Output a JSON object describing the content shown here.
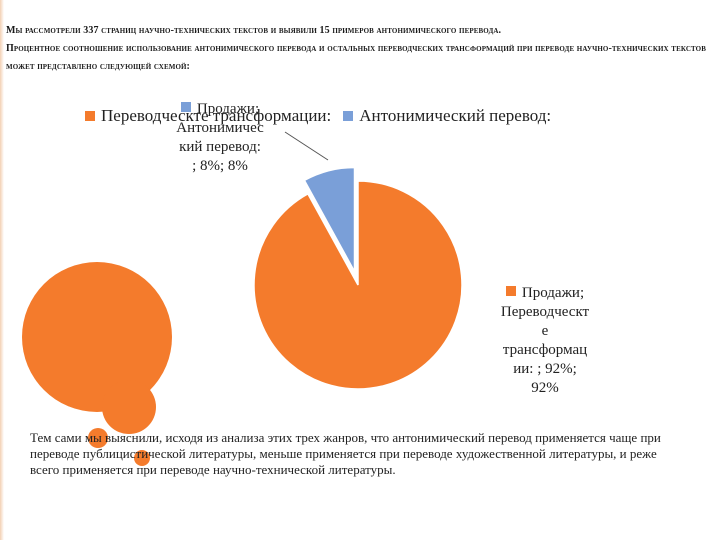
{
  "heading": {
    "line1": "Мы рассмотрели 337 страниц научно-технических текстов и выявили 15 примеров антонимического перевода.",
    "line2": "Процентное соотношение использование антонимического перевода и остальных переводческих трансформаций при переводе научно-технических текстов может представлено следующей схемой:"
  },
  "legend": [
    {
      "label": "Переводческте трансформации:",
      "color": "#f47b2c"
    },
    {
      "label": "Антонимический перевод:",
      "color": "#7a9fd8"
    }
  ],
  "data_labels": {
    "small": {
      "line1": "Продажи;",
      "line2": "Антонимичес",
      "line3": "кий перевод:",
      "line4": "; 8%; 8%"
    },
    "big": {
      "line1": "Продажи;",
      "line2": "Переводческт",
      "line3": "е",
      "line4": "трансформац",
      "line5": "ии: ; 92%;",
      "line6": "92%"
    }
  },
  "chart_data": {
    "type": "pie",
    "series_label": "Продажи",
    "categories": [
      "Переводческте трансформации:",
      "Антонимический перевод:"
    ],
    "values": [
      92,
      8
    ],
    "colors": [
      "#f47b2c",
      "#7a9fd8"
    ],
    "legend_position": "top",
    "exploded": true
  },
  "body_text": "Тем сами мы выяснили, исходя из анализа этих трех жанров, что антонимический перевод применяется чаще при переводе публицистической литературы, меньше применяется при переводе художественной литературы, и реже всего применяется при переводе научно-технической литературы."
}
